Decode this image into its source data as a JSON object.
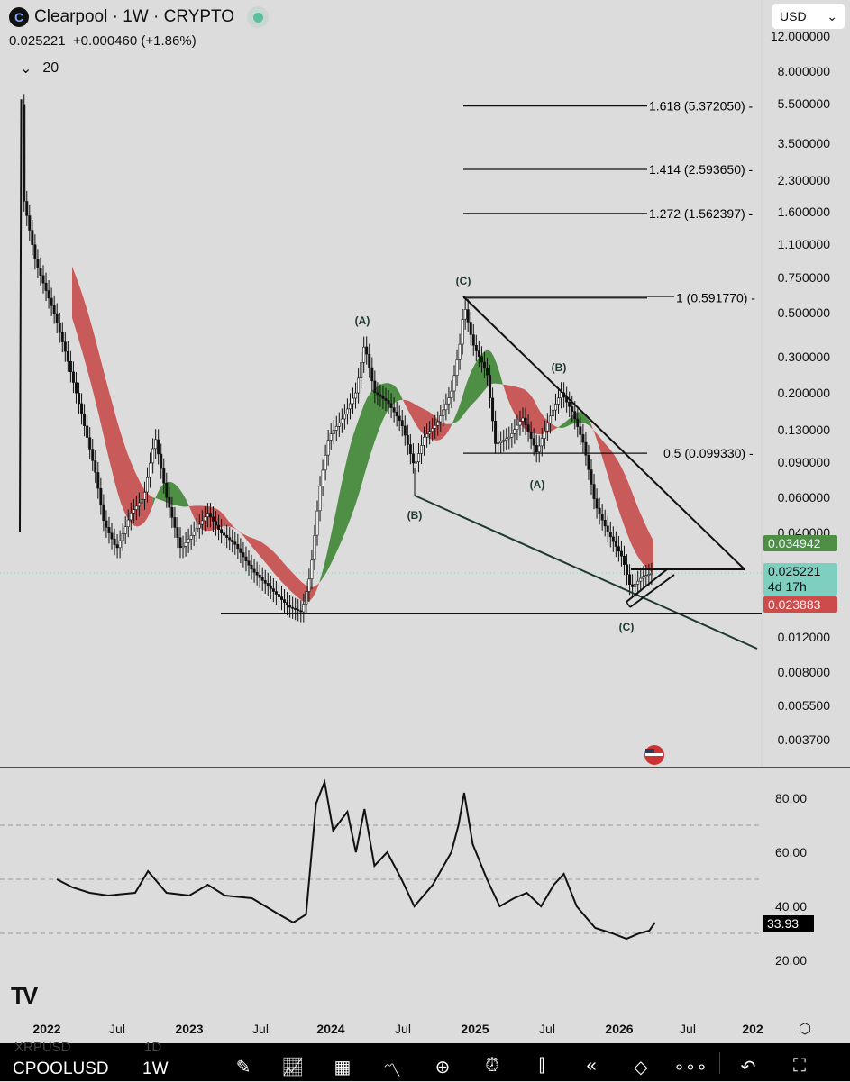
{
  "header": {
    "title": "Clearpool · 1W · CRYPTO",
    "logo_letter": "C",
    "price": "0.025221",
    "change": "+0.000460 (+1.86%)",
    "indicator_count": "20",
    "currency": "USD"
  },
  "price_axis": [
    "12.000000",
    "8.000000",
    "5.500000",
    "3.500000",
    "2.300000",
    "1.600000",
    "1.100000",
    "0.750000",
    "0.500000",
    "0.300000",
    "0.200000",
    "0.130000",
    "0.090000",
    "0.060000",
    "0.040000",
    "0.012000",
    "0.008000",
    "0.005500",
    "0.003700"
  ],
  "price_tags": {
    "ma_upper": "0.034942",
    "last": "0.025221",
    "countdown": "4d 17h",
    "ma_lower": "0.023883"
  },
  "fib_levels": [
    {
      "label": "1.618 (5.372050)",
      "price": 5.37205
    },
    {
      "label": "1.414 (2.593650)",
      "price": 2.59365
    },
    {
      "label": "1.272 (1.562397)",
      "price": 1.562397
    },
    {
      "label": "1 (0.591770)",
      "price": 0.59177
    },
    {
      "label": "0.5 (0.099330)",
      "price": 0.09933
    }
  ],
  "wave_labels": [
    "(C)",
    "(A)",
    "(B)",
    "(A)",
    "(B)",
    "(C)"
  ],
  "rsi_axis": [
    "80.00",
    "60.00",
    "40.00",
    "20.00"
  ],
  "rsi_value": "33.93",
  "time_axis": [
    {
      "t": "2022",
      "b": true
    },
    {
      "t": "Jul",
      "b": false
    },
    {
      "t": "2023",
      "b": true
    },
    {
      "t": "Jul",
      "b": false
    },
    {
      "t": "2024",
      "b": true
    },
    {
      "t": "Jul",
      "b": false
    },
    {
      "t": "2025",
      "b": true
    },
    {
      "t": "Jul",
      "b": false
    },
    {
      "t": "2026",
      "b": true
    },
    {
      "t": "Jul",
      "b": false
    },
    {
      "t": "202",
      "b": true
    }
  ],
  "toolbar": {
    "ghost_symbol": "XRPUSD",
    "ghost_interval": "1D",
    "symbol": "CPOOLUSD",
    "interval": "1W"
  },
  "colors": {
    "ma_bear": "#c85a5a",
    "ma_bull": "#4e8f45",
    "last_tag": "#7fcfc0",
    "up_tag": "#4e8f45",
    "down_tag": "#cc4b4b"
  },
  "chart_data": {
    "type": "candlestick-line",
    "scale": "log",
    "x_unit": "year",
    "price_path": [
      [
        2021.81,
        0.04
      ],
      [
        2021.82,
        5.8
      ],
      [
        2021.84,
        1.8
      ],
      [
        2021.92,
        0.9
      ],
      [
        2022.05,
        0.5
      ],
      [
        2022.14,
        0.3
      ],
      [
        2022.24,
        0.16
      ],
      [
        2022.34,
        0.08
      ],
      [
        2022.4,
        0.045
      ],
      [
        2022.49,
        0.033
      ],
      [
        2022.59,
        0.05
      ],
      [
        2022.68,
        0.06
      ],
      [
        2022.76,
        0.12
      ],
      [
        2022.84,
        0.06
      ],
      [
        2022.94,
        0.033
      ],
      [
        2023.03,
        0.04
      ],
      [
        2023.13,
        0.05
      ],
      [
        2023.22,
        0.04
      ],
      [
        2023.32,
        0.035
      ],
      [
        2023.44,
        0.026
      ],
      [
        2023.57,
        0.021
      ],
      [
        2023.7,
        0.017
      ],
      [
        2023.79,
        0.016
      ],
      [
        2023.85,
        0.025
      ],
      [
        2023.92,
        0.07
      ],
      [
        2023.98,
        0.12
      ],
      [
        2024.08,
        0.15
      ],
      [
        2024.17,
        0.2
      ],
      [
        2024.23,
        0.35
      ],
      [
        2024.3,
        0.2
      ],
      [
        2024.39,
        0.18
      ],
      [
        2024.49,
        0.14
      ],
      [
        2024.58,
        0.085
      ],
      [
        2024.65,
        0.12
      ],
      [
        2024.74,
        0.14
      ],
      [
        2024.84,
        0.2
      ],
      [
        2024.9,
        0.35
      ],
      [
        2024.93,
        0.55
      ],
      [
        2024.99,
        0.35
      ],
      [
        2025.09,
        0.25
      ],
      [
        2025.15,
        0.11
      ],
      [
        2025.25,
        0.12
      ],
      [
        2025.34,
        0.15
      ],
      [
        2025.44,
        0.1
      ],
      [
        2025.53,
        0.15
      ],
      [
        2025.61,
        0.2
      ],
      [
        2025.69,
        0.16
      ],
      [
        2025.77,
        0.11
      ],
      [
        2025.85,
        0.055
      ],
      [
        2025.94,
        0.04
      ],
      [
        2026.04,
        0.03
      ],
      [
        2026.1,
        0.021
      ],
      [
        2026.18,
        0.024
      ],
      [
        2026.26,
        0.025221
      ]
    ],
    "rsi": [
      [
        2022.07,
        50
      ],
      [
        2022.18,
        47
      ],
      [
        2022.3,
        45
      ],
      [
        2022.43,
        44
      ],
      [
        2022.62,
        45
      ],
      [
        2022.71,
        53
      ],
      [
        2022.84,
        45
      ],
      [
        2023.0,
        44
      ],
      [
        2023.13,
        48
      ],
      [
        2023.25,
        44
      ],
      [
        2023.44,
        43
      ],
      [
        2023.63,
        37
      ],
      [
        2023.73,
        34
      ],
      [
        2023.82,
        37
      ],
      [
        2023.89,
        78
      ],
      [
        2023.95,
        86
      ],
      [
        2024.01,
        68
      ],
      [
        2024.11,
        75
      ],
      [
        2024.17,
        60
      ],
      [
        2024.23,
        76
      ],
      [
        2024.3,
        55
      ],
      [
        2024.39,
        60
      ],
      [
        2024.49,
        50
      ],
      [
        2024.58,
        40
      ],
      [
        2024.71,
        48
      ],
      [
        2024.84,
        60
      ],
      [
        2024.89,
        70
      ],
      [
        2024.93,
        82
      ],
      [
        2024.99,
        63
      ],
      [
        2025.09,
        50
      ],
      [
        2025.18,
        40
      ],
      [
        2025.28,
        43
      ],
      [
        2025.37,
        45
      ],
      [
        2025.47,
        40
      ],
      [
        2025.56,
        48
      ],
      [
        2025.63,
        52
      ],
      [
        2025.72,
        40
      ],
      [
        2025.85,
        32
      ],
      [
        2025.97,
        30
      ],
      [
        2026.07,
        28
      ],
      [
        2026.16,
        30
      ],
      [
        2026.23,
        31
      ],
      [
        2026.27,
        34
      ]
    ],
    "rsi_levels": [
      70,
      50,
      30
    ],
    "price_ylim": [
      0.0037,
      12
    ]
  }
}
